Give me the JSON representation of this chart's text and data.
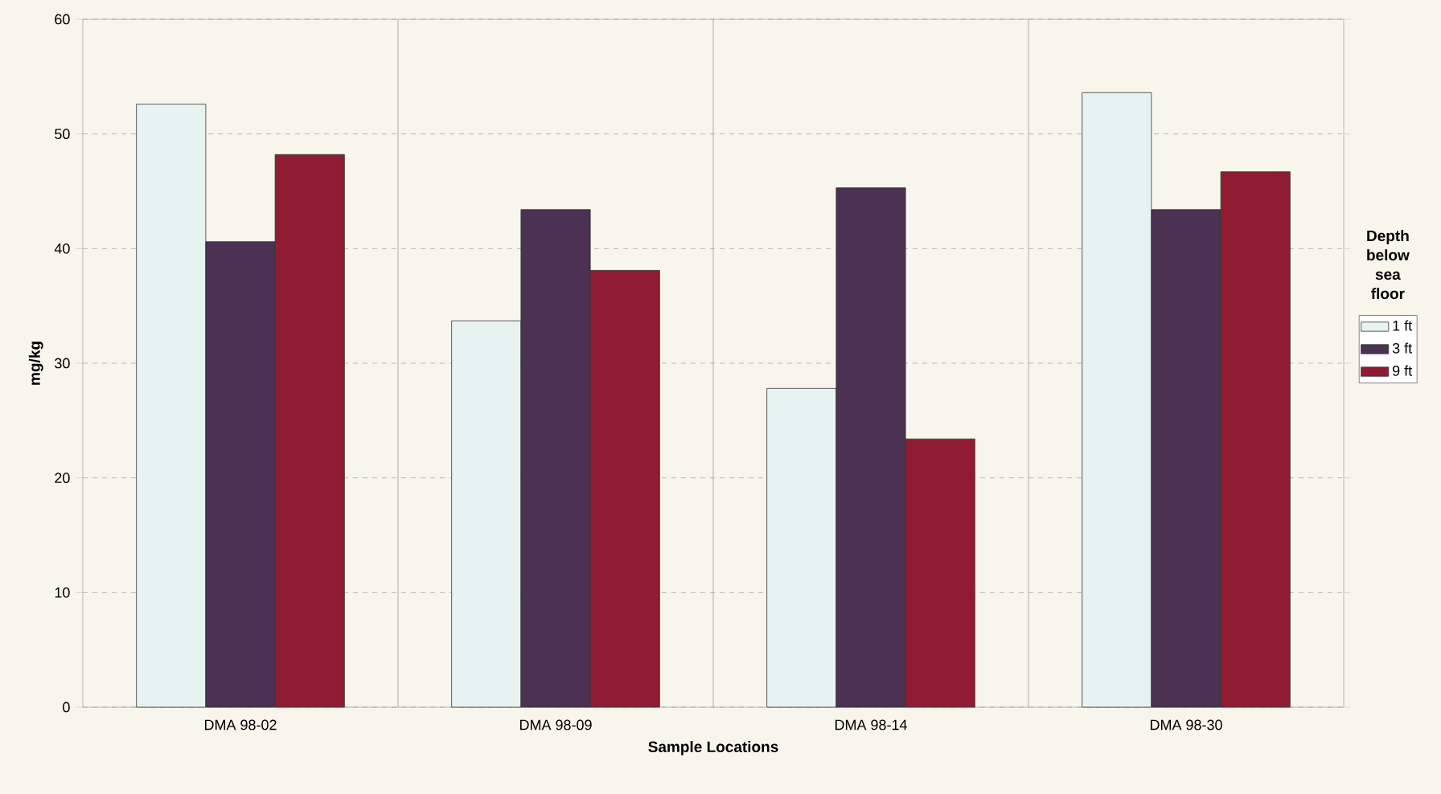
{
  "chart_data": {
    "type": "bar",
    "xlabel": "Sample Locations",
    "ylabel": "mg/kg",
    "legend_title": "Depth below sea floor",
    "categories": [
      "DMA 98-02",
      "DMA 98-09",
      "DMA 98-14",
      "DMA 98-30"
    ],
    "series": [
      {
        "name": "1 ft",
        "color": "#e6f3f1",
        "values": [
          52.6,
          33.7,
          27.8,
          53.6
        ]
      },
      {
        "name": "3 ft",
        "color": "#4b3152",
        "values": [
          40.6,
          43.4,
          45.3,
          43.4
        ]
      },
      {
        "name": "9 ft",
        "color": "#8f1c33",
        "values": [
          48.2,
          38.1,
          23.4,
          46.7
        ]
      }
    ],
    "ylim": [
      0,
      60
    ],
    "yticks": [
      0,
      10,
      20,
      30,
      40,
      50,
      60
    ],
    "grid": true,
    "legend": "right"
  }
}
